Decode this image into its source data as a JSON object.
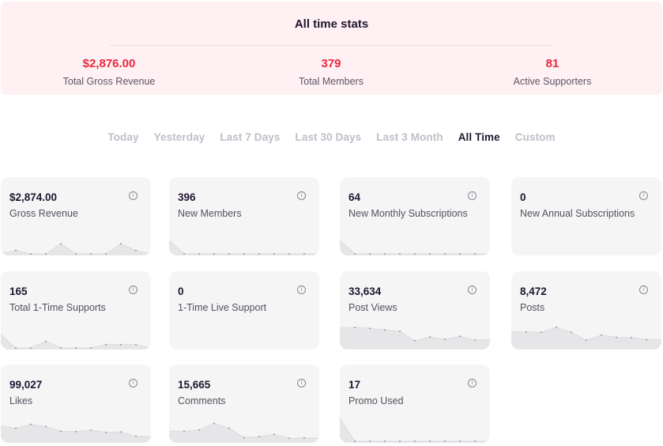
{
  "banner": {
    "title": "All time stats",
    "stats": [
      {
        "value": "$2,876.00",
        "label": "Total Gross Revenue"
      },
      {
        "value": "379",
        "label": "Total Members"
      },
      {
        "value": "81",
        "label": "Active Supporters"
      }
    ]
  },
  "tabs": [
    "Today",
    "Yesterday",
    "Last 7 Days",
    "Last 30 Days",
    "Last 3 Month",
    "All Time",
    "Custom"
  ],
  "active_tab": "All Time",
  "info_glyph": "i",
  "colors": {
    "accent": "#e8283f",
    "banner_bg": "#fff1f3",
    "card_bg": "#f5f5f6",
    "active_tab": "#1f1631",
    "inactive_tab": "#c2bcc8"
  },
  "cards": [
    {
      "value": "$2,874.00",
      "label": "Gross Revenue",
      "trend": [
        0,
        1,
        0,
        0,
        3,
        0,
        0,
        0,
        3,
        1,
        0
      ]
    },
    {
      "value": "396",
      "label": "New Members",
      "trend": [
        4,
        0,
        0,
        0,
        0,
        0,
        0,
        0,
        0,
        0,
        0
      ]
    },
    {
      "value": "64",
      "label": "New Monthly Subscriptions",
      "trend": [
        4,
        0,
        0,
        0,
        0,
        0,
        0,
        0,
        0,
        0,
        0
      ]
    },
    {
      "value": "0",
      "label": "New Annual Subscriptions",
      "trend": []
    },
    {
      "value": "165",
      "label": "Total 1-Time Supports",
      "trend": [
        4,
        0,
        0,
        2,
        0,
        0,
        0,
        1,
        1,
        1,
        0
      ]
    },
    {
      "value": "0",
      "label": "1-Time Live Support",
      "trend": []
    },
    {
      "value": "33,634",
      "label": "Post Views",
      "trend": [
        6,
        6.2,
        5.9,
        5.4,
        5,
        2.2,
        3.3,
        2.6,
        3.5,
        2.4,
        2.5
      ]
    },
    {
      "value": "8,472",
      "label": "Posts",
      "trend": [
        4.8,
        4.8,
        4.7,
        6.2,
        4.7,
        2.3,
        3.9,
        3.2,
        3.1,
        2.5,
        2.5
      ]
    },
    {
      "value": "99,027",
      "label": "Likes",
      "trend": [
        4.6,
        3.9,
        5.1,
        4.4,
        3,
        2.9,
        3.3,
        2.7,
        2.8,
        1.5,
        1.5
      ]
    },
    {
      "value": "15,665",
      "label": "Comments",
      "trend": [
        3.1,
        3,
        3.4,
        5.4,
        3.9,
        1.1,
        1.4,
        2.1,
        0.9,
        1,
        0.9
      ]
    },
    {
      "value": "17",
      "label": "Promo Used",
      "trend": [
        7,
        0,
        0,
        0,
        0,
        0,
        0,
        0,
        0,
        0,
        0
      ]
    }
  ]
}
